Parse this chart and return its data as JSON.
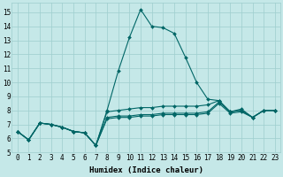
{
  "xlabel": "Humidex (Indice chaleur)",
  "xlim": [
    -0.5,
    23.5
  ],
  "ylim": [
    5,
    15.7
  ],
  "yticks": [
    5,
    6,
    7,
    8,
    9,
    10,
    11,
    12,
    13,
    14,
    15
  ],
  "xticks": [
    0,
    1,
    2,
    3,
    4,
    5,
    6,
    7,
    8,
    9,
    10,
    11,
    12,
    13,
    14,
    15,
    16,
    17,
    18,
    19,
    20,
    21,
    22,
    23
  ],
  "background_color": "#c5e8e8",
  "grid_color": "#9ecece",
  "line_color": "#006666",
  "series": [
    {
      "x": [
        0,
        1,
        2,
        3,
        4,
        5,
        6,
        7,
        8,
        9,
        10,
        11,
        12,
        13,
        14,
        15,
        16,
        17,
        18,
        19,
        20,
        21,
        22,
        23
      ],
      "y": [
        6.5,
        5.9,
        7.1,
        7.0,
        6.8,
        6.5,
        6.4,
        5.5,
        8.0,
        10.8,
        13.2,
        15.2,
        14.0,
        13.9,
        13.5,
        11.8,
        10.0,
        8.8,
        8.7,
        7.9,
        8.1,
        7.5,
        8.0,
        8.0
      ]
    },
    {
      "x": [
        0,
        1,
        2,
        3,
        4,
        5,
        6,
        7,
        8,
        9,
        10,
        11,
        12,
        13,
        14,
        15,
        16,
        17,
        18,
        19,
        20,
        21,
        22,
        23
      ],
      "y": [
        6.5,
        5.9,
        7.1,
        7.0,
        6.8,
        6.5,
        6.4,
        5.5,
        7.5,
        7.6,
        7.6,
        7.7,
        7.7,
        7.8,
        7.8,
        7.8,
        7.8,
        7.9,
        8.6,
        7.9,
        8.0,
        7.5,
        8.0,
        8.0
      ]
    },
    {
      "x": [
        0,
        1,
        2,
        3,
        4,
        5,
        6,
        7,
        8,
        9,
        10,
        11,
        12,
        13,
        14,
        15,
        16,
        17,
        18,
        19,
        20,
        21,
        22,
        23
      ],
      "y": [
        6.5,
        5.9,
        7.1,
        7.0,
        6.8,
        6.5,
        6.4,
        5.5,
        7.4,
        7.5,
        7.5,
        7.6,
        7.6,
        7.7,
        7.7,
        7.7,
        7.7,
        7.8,
        8.5,
        7.8,
        7.9,
        7.5,
        8.0,
        8.0
      ]
    },
    {
      "x": [
        0,
        1,
        2,
        3,
        4,
        5,
        6,
        7,
        8,
        9,
        10,
        11,
        12,
        13,
        14,
        15,
        16,
        17,
        18,
        19,
        20,
        21,
        22,
        23
      ],
      "y": [
        6.5,
        5.9,
        7.1,
        7.0,
        6.8,
        6.5,
        6.4,
        5.5,
        7.9,
        8.0,
        8.1,
        8.2,
        8.2,
        8.3,
        8.3,
        8.3,
        8.3,
        8.4,
        8.7,
        7.9,
        8.0,
        7.5,
        8.0,
        8.0
      ]
    }
  ],
  "line_width": 0.8,
  "marker": "D",
  "marker_size": 2.0,
  "tick_fontsize": 5.5,
  "label_fontsize": 6.5
}
